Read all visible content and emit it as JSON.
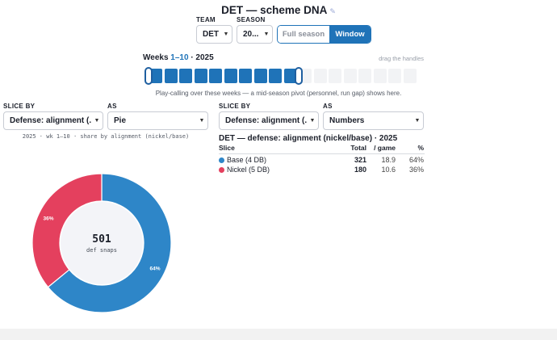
{
  "header": {
    "title": "DET — scheme DNA",
    "edit_icon": "pencil-icon"
  },
  "controls": {
    "team": {
      "label": "TEAM",
      "value": "DET"
    },
    "season": {
      "label": "SEASON",
      "value": "20..."
    },
    "mode_toggle": {
      "options": [
        "Full season",
        "Window"
      ],
      "selected": "Window"
    }
  },
  "weeks": {
    "prefix": "Weeks ",
    "range": "1–10",
    "suffix": " · 2025",
    "drag_hint": "drag the handles",
    "selected_start": 1,
    "selected_end": 10,
    "total_weeks": 18,
    "note": "Play-calling over these weeks — a mid-season pivot (personnel, run gap) shows here."
  },
  "left_panel": {
    "slice_label": "SLICE BY",
    "slice_value": "Defense: alignment (...",
    "as_label": "AS",
    "as_value": "Pie",
    "caption": "2025 · wk 1–10 · share by alignment (nickel/base)"
  },
  "right_panel": {
    "slice_label": "SLICE BY",
    "slice_value": "Defense: alignment (...",
    "as_label": "AS",
    "as_value": "Numbers",
    "table_title": "DET — defense: alignment (nickel/base) · 2025",
    "columns": {
      "slice": "Slice",
      "total": "Total",
      "per_game": "/ game",
      "pct": "%"
    },
    "rows": [
      {
        "name": "Base (4 DB)",
        "total": "321",
        "per_game": "18.9",
        "pct": "64%",
        "color": "#2e86c8"
      },
      {
        "name": "Nickel (5 DB)",
        "total": "180",
        "per_game": "10.6",
        "pct": "36%",
        "color": "#e4405e"
      }
    ]
  },
  "chart_data": {
    "type": "pie",
    "categories": [
      "Base (4 DB)",
      "Nickel (5 DB)"
    ],
    "values": [
      321,
      180
    ],
    "slice_labels": [
      "64%",
      "36%"
    ],
    "colors": [
      "#2e86c8",
      "#e4405e"
    ],
    "center_value": "501",
    "center_label": "def snaps"
  }
}
